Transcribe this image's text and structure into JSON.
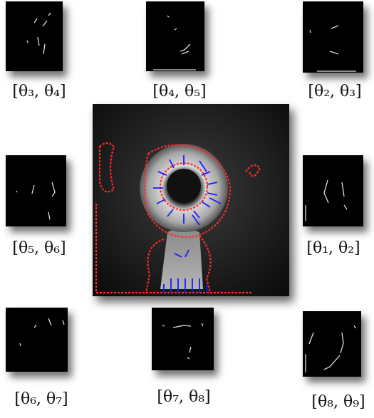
{
  "panels": [
    {
      "label": "[θ₃, θ₄]"
    },
    {
      "label": "[θ₄, θ₅]"
    },
    {
      "label": "[θ₂, θ₃]"
    },
    {
      "label": "[θ₅, θ₆]"
    },
    {
      "label": "[θ₁, θ₂]"
    },
    {
      "label": "[θ₆, θ₇]"
    },
    {
      "label": "[θ₇, θ₈]"
    },
    {
      "label": "[θ₈, θ₉]"
    }
  ]
}
